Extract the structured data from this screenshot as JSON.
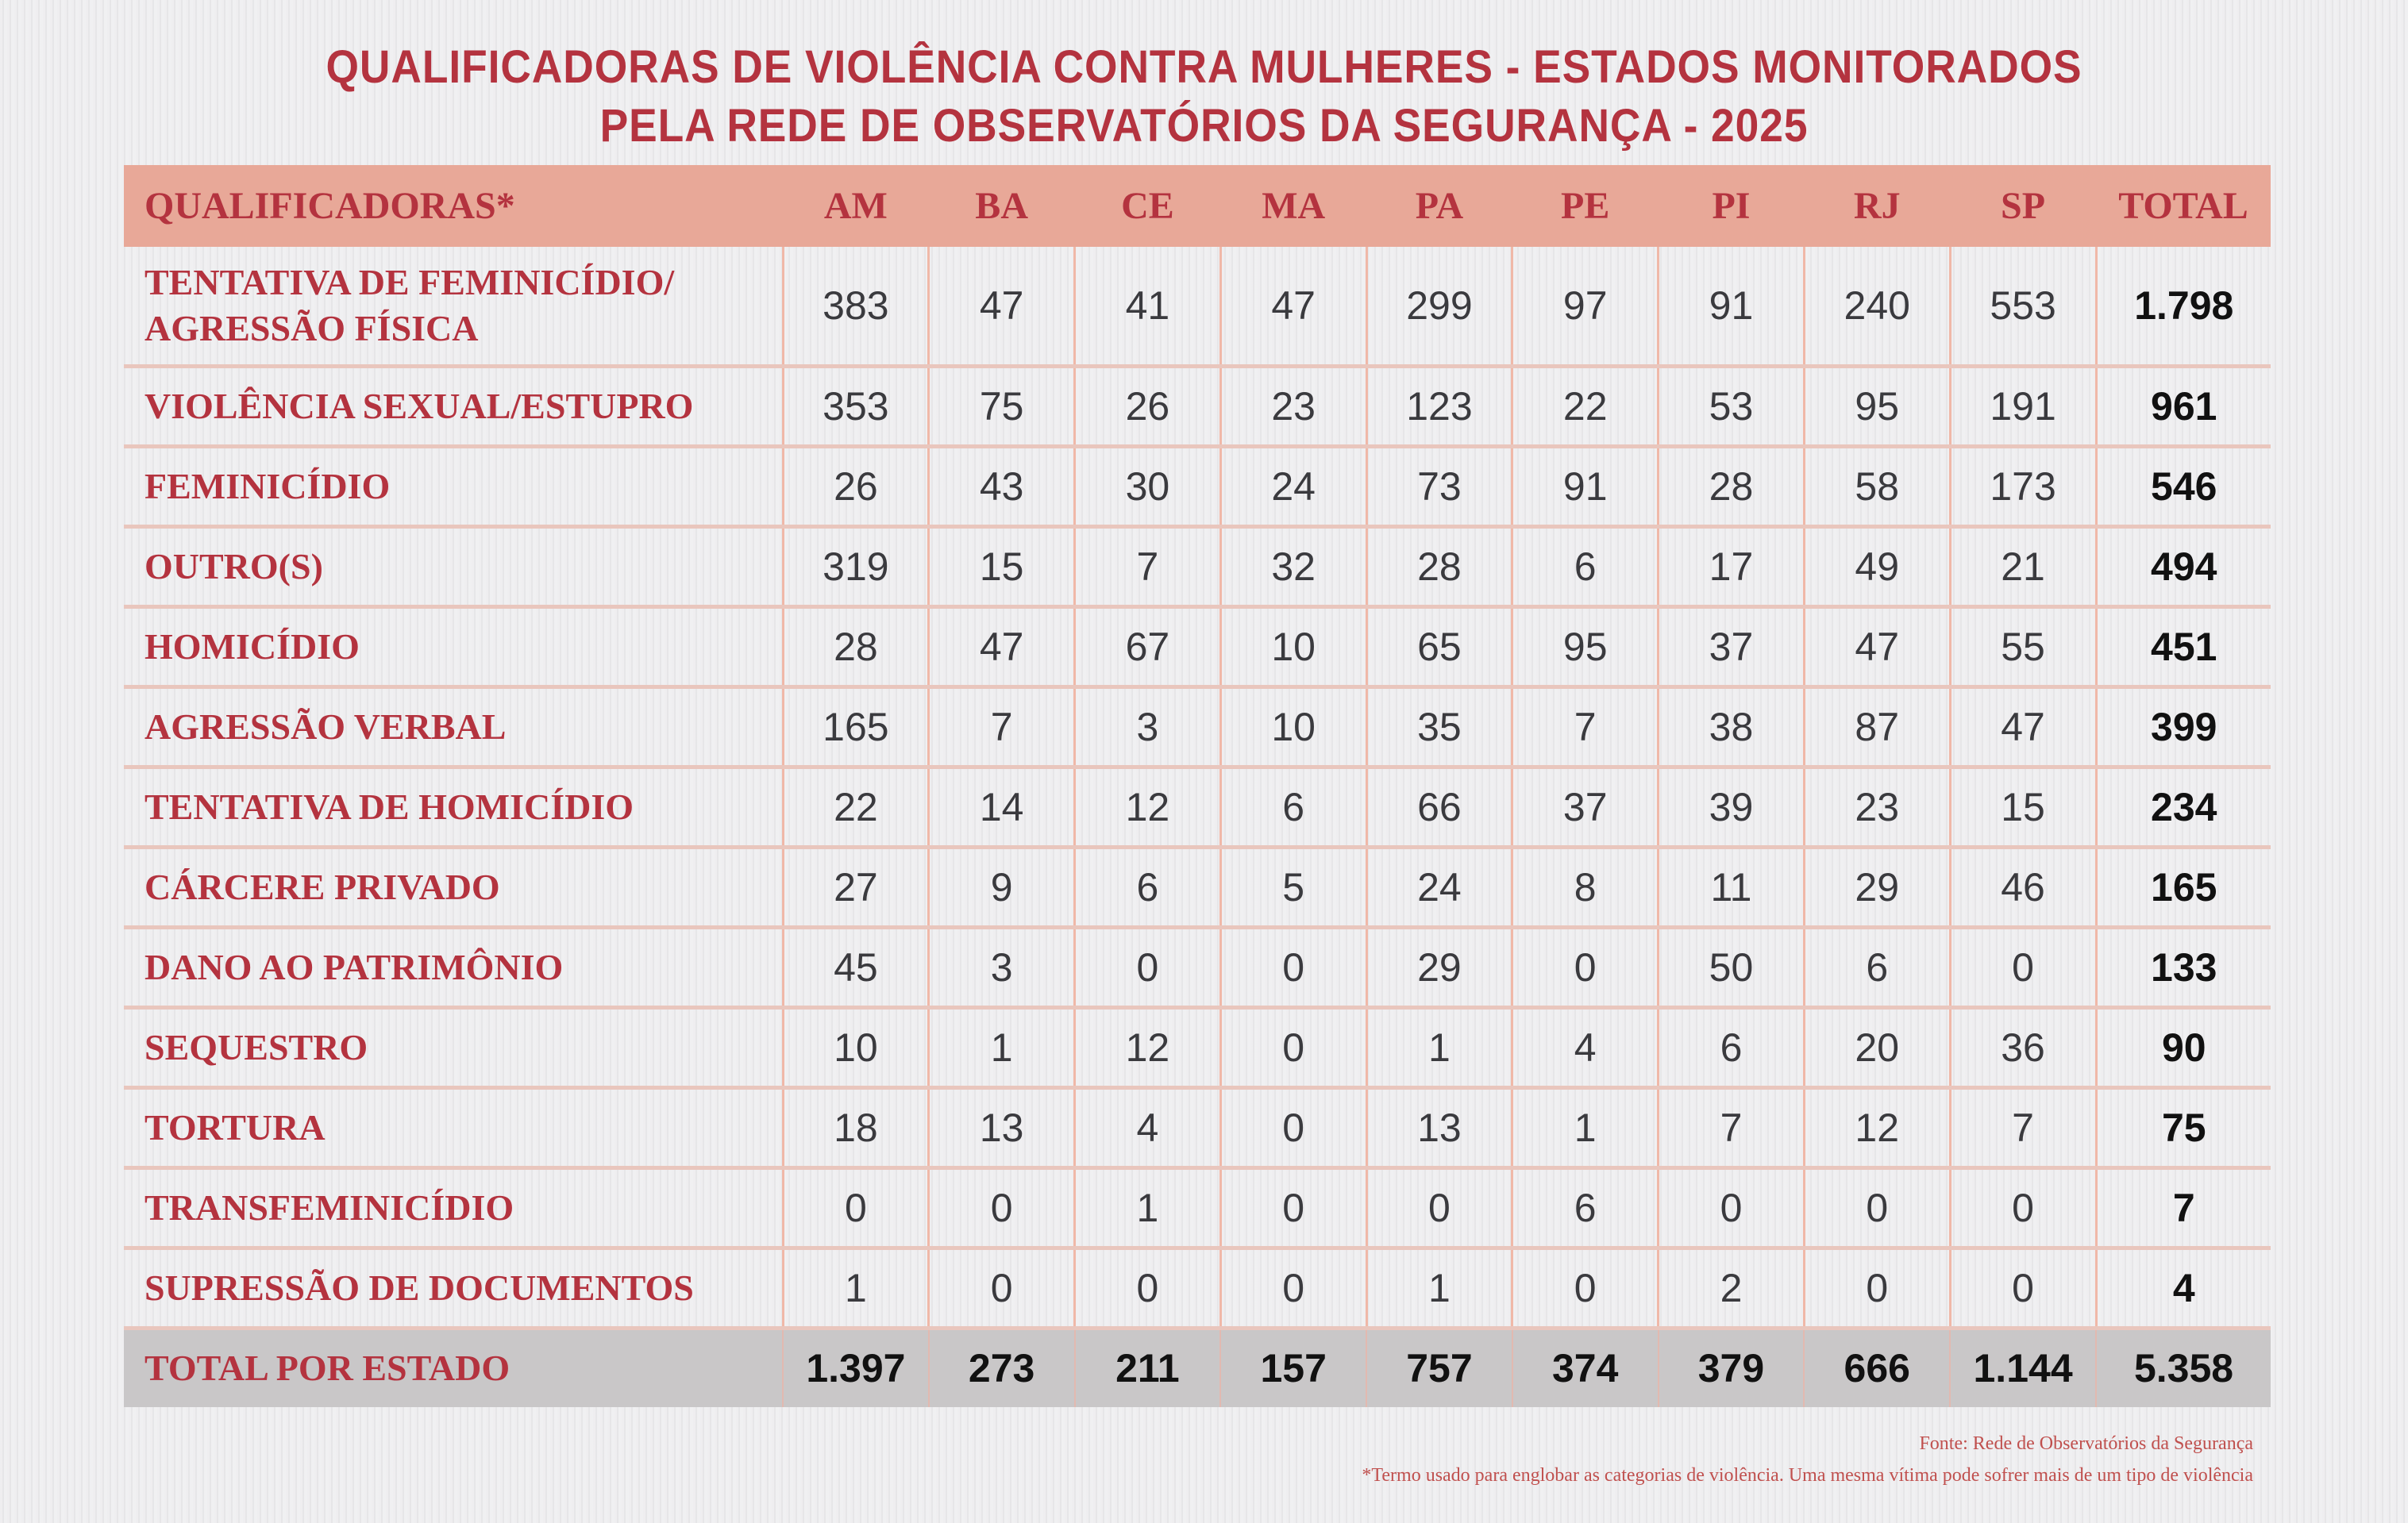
{
  "title": {
    "line1": "QUALIFICADORAS DE VIOLÊNCIA CONTRA MULHERES - ESTADOS MONITORADOS",
    "line2": "PELA REDE DE OBSERVATÓRIOS DA SEGURANÇA - 2025"
  },
  "table": {
    "headers": [
      "QUALIFICADORAS*",
      "AM",
      "BA",
      "CE",
      "MA",
      "PA",
      "PE",
      "PI",
      "RJ",
      "SP",
      "TOTAL"
    ],
    "rows": [
      {
        "label": "TENTATIVA DE FEMINICÍDIO/ AGRESSÃO FÍSICA",
        "values": [
          "383",
          "47",
          "41",
          "47",
          "299",
          "97",
          "91",
          "240",
          "553"
        ],
        "total": "1.798"
      },
      {
        "label": "VIOLÊNCIA SEXUAL/ESTUPRO",
        "values": [
          "353",
          "75",
          "26",
          "23",
          "123",
          "22",
          "53",
          "95",
          "191"
        ],
        "total": "961"
      },
      {
        "label": "FEMINICÍDIO",
        "values": [
          "26",
          "43",
          "30",
          "24",
          "73",
          "91",
          "28",
          "58",
          "173"
        ],
        "total": "546"
      },
      {
        "label": "OUTRO(S)",
        "values": [
          "319",
          "15",
          "7",
          "32",
          "28",
          "6",
          "17",
          "49",
          "21"
        ],
        "total": "494"
      },
      {
        "label": "HOMICÍDIO",
        "values": [
          "28",
          "47",
          "67",
          "10",
          "65",
          "95",
          "37",
          "47",
          "55"
        ],
        "total": "451"
      },
      {
        "label": "AGRESSÃO VERBAL",
        "values": [
          "165",
          "7",
          "3",
          "10",
          "35",
          "7",
          "38",
          "87",
          "47"
        ],
        "total": "399"
      },
      {
        "label": "TENTATIVA DE HOMICÍDIO",
        "values": [
          "22",
          "14",
          "12",
          "6",
          "66",
          "37",
          "39",
          "23",
          "15"
        ],
        "total": "234"
      },
      {
        "label": "CÁRCERE PRIVADO",
        "values": [
          "27",
          "9",
          "6",
          "5",
          "24",
          "8",
          "11",
          "29",
          "46"
        ],
        "total": "165"
      },
      {
        "label": "DANO AO PATRIMÔNIO",
        "values": [
          "45",
          "3",
          "0",
          "0",
          "29",
          "0",
          "50",
          "6",
          "0"
        ],
        "total": "133"
      },
      {
        "label": "SEQUESTRO",
        "values": [
          "10",
          "1",
          "12",
          "0",
          "1",
          "4",
          "6",
          "20",
          "36"
        ],
        "total": "90"
      },
      {
        "label": "TORTURA",
        "values": [
          "18",
          "13",
          "4",
          "0",
          "13",
          "1",
          "7",
          "12",
          "7"
        ],
        "total": "75"
      },
      {
        "label": "TRANSFEMINICÍDIO",
        "values": [
          "0",
          "0",
          "1",
          "0",
          "0",
          "6",
          "0",
          "0",
          "0"
        ],
        "total": "7"
      },
      {
        "label": "SUPRESSÃO DE DOCUMENTOS",
        "values": [
          "1",
          "0",
          "0",
          "0",
          "1",
          "0",
          "2",
          "0",
          "0"
        ],
        "total": "4"
      }
    ],
    "total_row": {
      "label": "TOTAL POR ESTADO",
      "values": [
        "1.397",
        "273",
        "211",
        "157",
        "757",
        "374",
        "379",
        "666",
        "1.144"
      ],
      "total": "5.358"
    }
  },
  "footnotes": {
    "source": "Fonte: Rede de Observatórios da Segurança",
    "note": "*Termo usado para englobar as categorias de violência. Uma mesma vítima pode sofrer mais de um tipo de violência"
  },
  "colors": {
    "accent": "#b4333f",
    "header_bg": "#e8a898",
    "total_bg": "#c9c7c8",
    "grid": "#f0b8a8"
  },
  "chart_data": {
    "type": "table",
    "title": "QUALIFICADORAS DE VIOLÊNCIA CONTRA MULHERES - ESTADOS MONITORADOS PELA REDE DE OBSERVATÓRIOS DA SEGURANÇA - 2025",
    "columns": [
      "AM",
      "BA",
      "CE",
      "MA",
      "PA",
      "PE",
      "PI",
      "RJ",
      "SP",
      "TOTAL"
    ],
    "categories": [
      "TENTATIVA DE FEMINICÍDIO/AGRESSÃO FÍSICA",
      "VIOLÊNCIA SEXUAL/ESTUPRO",
      "FEMINICÍDIO",
      "OUTRO(S)",
      "HOMICÍDIO",
      "AGRESSÃO VERBAL",
      "TENTATIVA DE HOMICÍDIO",
      "CÁRCERE PRIVADO",
      "DANO AO PATRIMÔNIO",
      "SEQUESTRO",
      "TORTURA",
      "TRANSFEMINICÍDIO",
      "SUPRESSÃO DE DOCUMENTOS",
      "TOTAL POR ESTADO"
    ],
    "series": [
      {
        "name": "AM",
        "values": [
          383,
          353,
          26,
          319,
          28,
          165,
          22,
          27,
          45,
          10,
          18,
          0,
          1,
          1397
        ]
      },
      {
        "name": "BA",
        "values": [
          47,
          75,
          43,
          15,
          47,
          7,
          14,
          9,
          3,
          1,
          13,
          0,
          0,
          273
        ]
      },
      {
        "name": "CE",
        "values": [
          41,
          26,
          30,
          7,
          67,
          3,
          12,
          6,
          0,
          12,
          4,
          1,
          0,
          211
        ]
      },
      {
        "name": "MA",
        "values": [
          47,
          23,
          24,
          32,
          10,
          10,
          6,
          5,
          0,
          0,
          0,
          0,
          0,
          157
        ]
      },
      {
        "name": "PA",
        "values": [
          299,
          123,
          73,
          28,
          65,
          35,
          66,
          24,
          29,
          1,
          13,
          0,
          1,
          757
        ]
      },
      {
        "name": "PE",
        "values": [
          97,
          22,
          91,
          6,
          95,
          7,
          37,
          8,
          0,
          4,
          1,
          6,
          0,
          374
        ]
      },
      {
        "name": "PI",
        "values": [
          91,
          53,
          28,
          17,
          37,
          38,
          39,
          11,
          50,
          6,
          7,
          0,
          2,
          379
        ]
      },
      {
        "name": "RJ",
        "values": [
          240,
          95,
          58,
          49,
          47,
          87,
          23,
          29,
          6,
          20,
          12,
          0,
          0,
          666
        ]
      },
      {
        "name": "SP",
        "values": [
          553,
          191,
          173,
          21,
          55,
          47,
          15,
          46,
          0,
          36,
          7,
          0,
          0,
          1144
        ]
      },
      {
        "name": "TOTAL",
        "values": [
          1798,
          961,
          546,
          494,
          451,
          399,
          234,
          165,
          133,
          90,
          75,
          7,
          4,
          5358
        ]
      }
    ],
    "source": "Fonte: Rede de Observatórios da Segurança"
  }
}
